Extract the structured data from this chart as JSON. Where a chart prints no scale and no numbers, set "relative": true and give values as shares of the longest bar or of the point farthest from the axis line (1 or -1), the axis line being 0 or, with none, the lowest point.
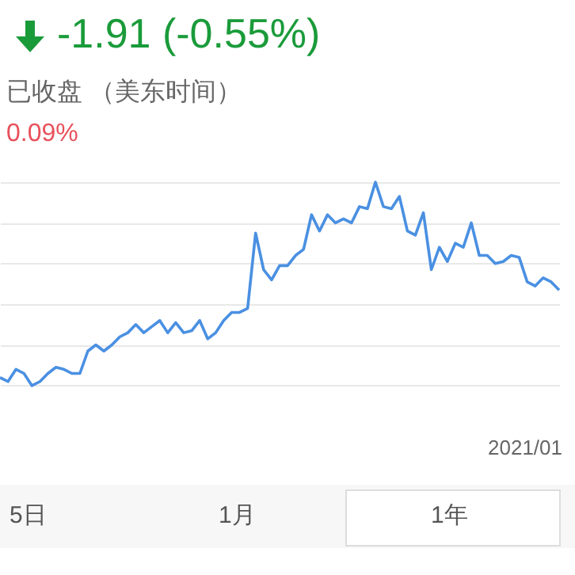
{
  "chart_data": {
    "type": "line",
    "title": "-1.91 (-0.55%)",
    "subtitle": "已收盘 （美东时间）",
    "relative": true,
    "grid": "y",
    "marker": "none",
    "line_style": "solid",
    "annotations": [
      "0.09%",
      "2021/01",
      "5日",
      "1月",
      "1年"
    ],
    "categories": [
      null,
      null,
      null,
      null,
      null,
      null,
      null,
      null,
      null,
      null,
      null,
      null,
      null,
      null,
      null,
      null,
      null,
      null,
      null,
      null,
      null,
      null,
      null,
      null,
      null,
      null,
      null,
      null,
      null,
      null,
      null,
      null,
      null,
      null,
      null,
      null,
      null,
      null,
      null,
      null,
      null,
      null,
      null,
      null,
      null,
      null,
      null,
      null,
      null,
      null,
      null,
      null,
      null,
      null,
      null,
      null,
      null,
      null,
      null,
      null,
      null,
      null,
      null,
      null,
      null,
      null,
      null,
      null,
      null,
      null,
      null
    ],
    "series": [
      {
        "color": "#4a90e2",
        "values": [
          0.04,
          0.02,
          0.08,
          0.06,
          0,
          0.02,
          0.06,
          0.09,
          0.08,
          0.06,
          0.06,
          0.17,
          0.2,
          0.17,
          0.2,
          0.24,
          0.26,
          0.3,
          0.26,
          0.29,
          0.32,
          0.26,
          0.31,
          0.26,
          0.27,
          0.32,
          0.23,
          0.26,
          0.32,
          0.36,
          0.36,
          0.38,
          0.75,
          0.57,
          0.52,
          0.59,
          0.59,
          0.64,
          0.67,
          0.84,
          0.76,
          0.84,
          0.8,
          0.82,
          0.8,
          0.88,
          0.87,
          1,
          0.88,
          0.87,
          0.93,
          0.76,
          0.74,
          0.85,
          0.57,
          0.68,
          0.61,
          0.7,
          0.68,
          0.8,
          0.64,
          0.64,
          0.6,
          0.61,
          0.64,
          0.63,
          0.51,
          0.49,
          0.53,
          0.51,
          0.47
        ]
      }
    ]
  }
}
